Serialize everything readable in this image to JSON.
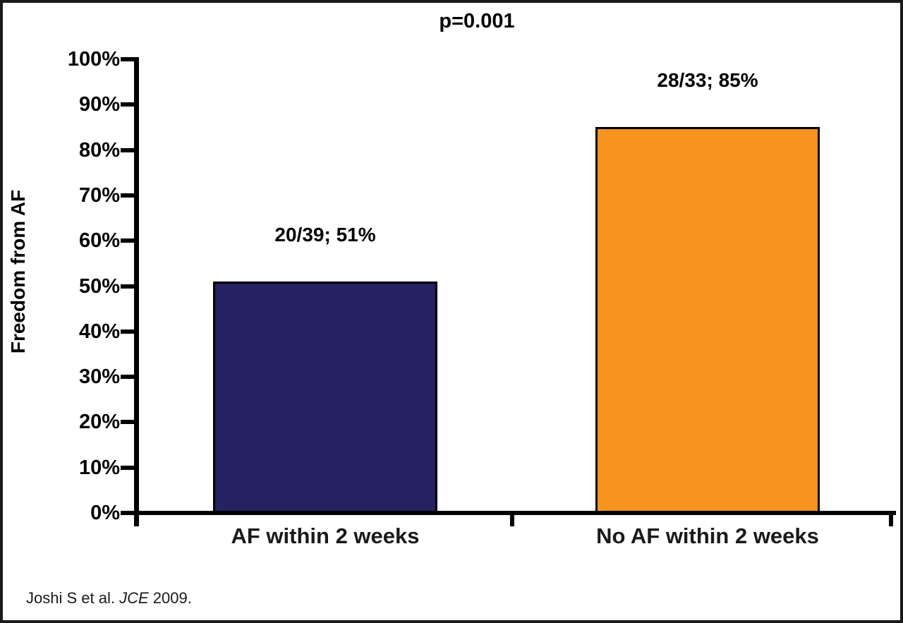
{
  "chart_data": {
    "type": "bar",
    "title": "p=0.001",
    "ylabel": "Freedom from AF",
    "xlabel": "",
    "categories": [
      "AF within 2 weeks",
      "No AF within 2 weeks"
    ],
    "values": [
      51,
      85
    ],
    "bar_labels": [
      "20/39; 51%",
      "28/33; 85%"
    ],
    "bar_colors": [
      "#262262",
      "#F7931E"
    ],
    "ylim": [
      0,
      100
    ],
    "ytick_step": 10,
    "ytick_labels": [
      "0%",
      "10%",
      "20%",
      "30%",
      "40%",
      "50%",
      "60%",
      "70%",
      "80%",
      "90%",
      "100%"
    ],
    "grid": false,
    "legend_position": "none"
  },
  "citation": {
    "prefix": "Joshi S et al. ",
    "journal": "JCE",
    "suffix": " 2009."
  }
}
